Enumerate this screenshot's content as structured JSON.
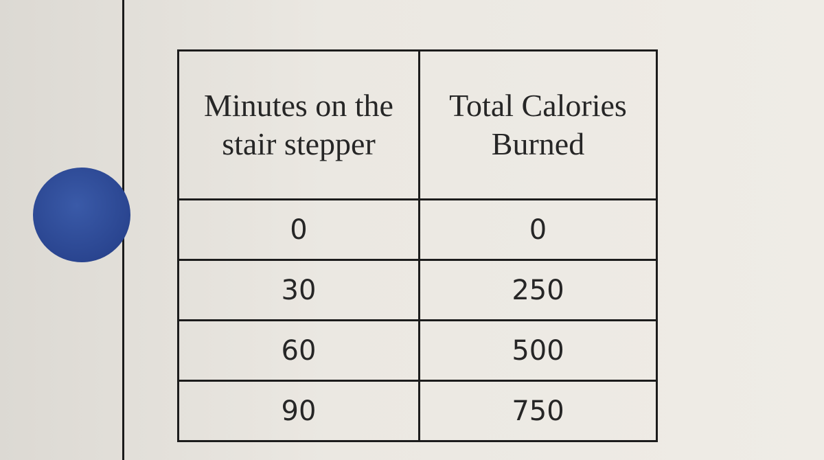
{
  "table": {
    "headers": [
      "Minutes on the stair stepper",
      "Total Calories Burned"
    ],
    "rows": [
      [
        0,
        0
      ],
      [
        30,
        250
      ],
      [
        60,
        500
      ],
      [
        90,
        750
      ]
    ]
  }
}
